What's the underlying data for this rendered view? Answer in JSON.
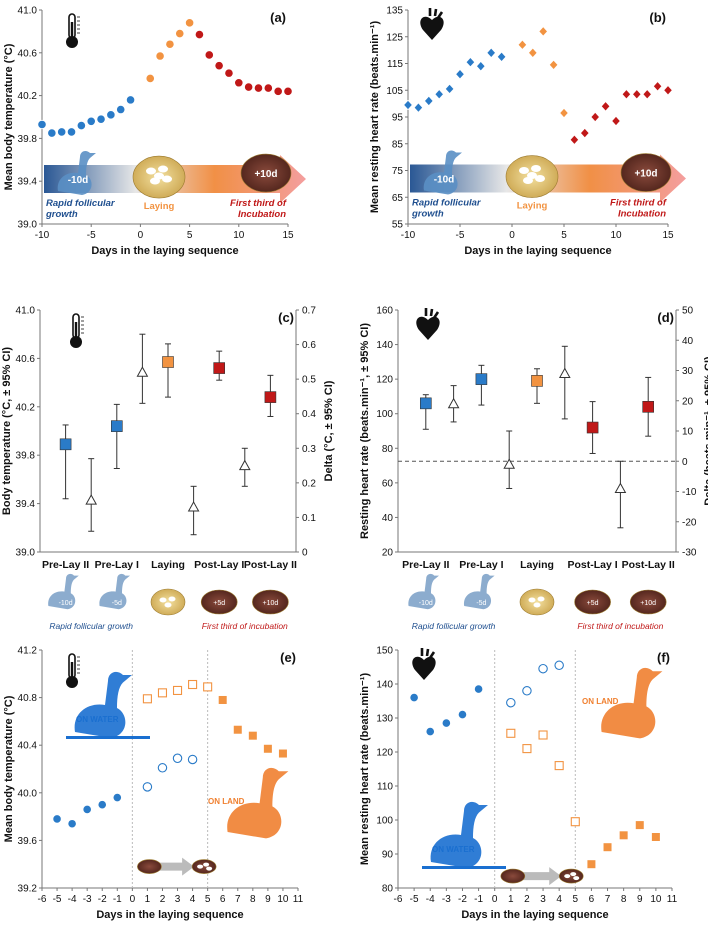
{
  "colors": {
    "pre": "#2a7bc8",
    "lay": "#f29341",
    "post": "#c01818",
    "delta": "#ffffff",
    "axis": "#777777",
    "text": "#111111",
    "arrowBlue": "#1f4f8f",
    "arrowOrange": "#f08a3c",
    "arrowPink": "#f39999",
    "grid": "#bbbbbb"
  },
  "chart_data": [
    {
      "panel": "(a)",
      "type": "scatter",
      "ylabel": "Mean body temperature (°C)",
      "xlabel": "Days in the laying sequence",
      "ylim": [
        39.0,
        41.0
      ],
      "yticks": [
        "39.0",
        "39.4",
        "39.8",
        "40.2",
        "40.6",
        "41.0"
      ],
      "xlim": [
        -10,
        15
      ],
      "xticks": [
        "-10",
        "-5",
        "0",
        "5",
        "10",
        "15"
      ],
      "series": [
        {
          "name": "Rapid follicular growth",
          "color": "pre",
          "marker": "circle",
          "x": [
            -10,
            -9,
            -8,
            -7,
            -6,
            -5,
            -4,
            -3,
            -2,
            -1
          ],
          "y": [
            39.93,
            39.85,
            39.86,
            39.86,
            39.92,
            39.96,
            39.98,
            40.02,
            40.07,
            40.16
          ]
        },
        {
          "name": "Laying",
          "color": "lay",
          "marker": "circle",
          "x": [
            1,
            2,
            3,
            4,
            5
          ],
          "y": [
            40.36,
            40.57,
            40.68,
            40.78,
            40.88
          ]
        },
        {
          "name": "First third of Incubation",
          "color": "post",
          "marker": "circle",
          "x": [
            6,
            7,
            8,
            9,
            10,
            11,
            12,
            13,
            14,
            15
          ],
          "y": [
            40.77,
            40.58,
            40.48,
            40.41,
            40.32,
            40.28,
            40.27,
            40.27,
            40.24,
            40.24
          ]
        }
      ],
      "labels": {
        "pre": "Rapid follicular growth",
        "lay": "Laying",
        "post": "First third of Incubation",
        "preDays": "-10d",
        "postDays": "+10d"
      },
      "icon": "thermometer-icon"
    },
    {
      "panel": "(b)",
      "type": "scatter",
      "ylabel": "Mean resting heart rate (beats.min⁻¹)",
      "xlabel": "Days in the laying sequence",
      "ylim": [
        55,
        135
      ],
      "yticks": [
        "55",
        "65",
        "75",
        "85",
        "95",
        "105",
        "115",
        "125",
        "135"
      ],
      "xlim": [
        -10,
        15
      ],
      "xticks": [
        "-10",
        "-5",
        "0",
        "5",
        "10",
        "15"
      ],
      "series": [
        {
          "name": "Rapid follicular growth",
          "color": "pre",
          "marker": "diamond",
          "x": [
            -10,
            -9,
            -8,
            -7,
            -6,
            -5,
            -4,
            -3,
            -2,
            -1
          ],
          "y": [
            99.5,
            98.5,
            101,
            103.5,
            105.5,
            111,
            115.5,
            114,
            119,
            117.5
          ]
        },
        {
          "name": "Laying",
          "color": "lay",
          "marker": "diamond",
          "x": [
            1,
            2,
            3,
            4,
            5
          ],
          "y": [
            122,
            119,
            127,
            114.5,
            96.5
          ]
        },
        {
          "name": "First third of Incubation",
          "color": "post",
          "marker": "diamond",
          "x": [
            6,
            7,
            8,
            9,
            10,
            11,
            12,
            13,
            14,
            15
          ],
          "y": [
            86.5,
            89,
            95,
            99,
            93.5,
            103.5,
            103.5,
            103.5,
            106.5,
            105
          ]
        }
      ],
      "labels": {
        "pre": "Rapid follicular growth",
        "lay": "Laying",
        "post": "First third of Incubation",
        "preDays": "-10d",
        "postDays": "+10d"
      },
      "icon": "heart-icon"
    },
    {
      "panel": "(c)",
      "type": "errorbar",
      "ylabel": "Body temperature (°C, ± 95% CI)",
      "y2label": "Delta (°C, ± 95% CI)",
      "ylim": [
        39.0,
        41.0
      ],
      "yticks": [
        "39.0",
        "39.4",
        "39.8",
        "40.2",
        "40.6",
        "41.0"
      ],
      "y2lim": [
        0,
        0.7
      ],
      "y2ticks": [
        "0",
        "0.1",
        "0.2",
        "0.3",
        "0.4",
        "0.5",
        "0.6",
        "0.7"
      ],
      "categories": [
        "Pre-Lay II",
        "Pre-Lay I",
        "Laying",
        "Post-Lay I",
        "Post-Lay II"
      ],
      "means": [
        {
          "pos": 1,
          "y": 39.89,
          "lo": 39.44,
          "hi": 40.05,
          "color": "pre"
        },
        {
          "pos": 2,
          "y": 40.04,
          "lo": 39.69,
          "hi": 40.22,
          "color": "pre"
        },
        {
          "pos": 3,
          "y": 40.57,
          "lo": 40.28,
          "hi": 40.72,
          "color": "lay"
        },
        {
          "pos": 4,
          "y": 40.52,
          "lo": 40.42,
          "hi": 40.66,
          "color": "post"
        },
        {
          "pos": 5,
          "y": 40.28,
          "lo": 40.12,
          "hi": 40.46,
          "color": "post"
        }
      ],
      "deltas": [
        {
          "pos": 1.5,
          "y": 0.15,
          "lo": 0.06,
          "hi": 0.27
        },
        {
          "pos": 2.5,
          "y": 0.52,
          "lo": 0.43,
          "hi": 0.63
        },
        {
          "pos": 3.5,
          "y": 0.13,
          "lo": 0.05,
          "hi": 0.19
        },
        {
          "pos": 4.5,
          "y": 0.25,
          "lo": 0.19,
          "hi": 0.3
        }
      ],
      "days": [
        "-10d",
        "-5d",
        "",
        "+5d",
        "+10d"
      ],
      "footer": {
        "pre": "Rapid follicular growth",
        "post": "First third of incubation"
      },
      "icon": "thermometer-icon"
    },
    {
      "panel": "(d)",
      "type": "errorbar",
      "ylabel": "Resting heart rate (beats.min⁻¹, ± 95% CI)",
      "y2label": "Delta (beats.min⁻¹, ± 95% CI)",
      "ylim": [
        20,
        160
      ],
      "yticks": [
        "20",
        "40",
        "60",
        "80",
        "100",
        "120",
        "140",
        "160"
      ],
      "y2lim": [
        -30,
        50
      ],
      "y2ticks": [
        "-30",
        "-20",
        "-10",
        "0",
        "10",
        "20",
        "30",
        "40",
        "50"
      ],
      "categories": [
        "Pre-Lay II",
        "Pre-Lay I",
        "Laying",
        "Post-Lay I",
        "Post-Lay II"
      ],
      "means": [
        {
          "pos": 1,
          "y": 106,
          "lo": 91,
          "hi": 111,
          "color": "pre"
        },
        {
          "pos": 2,
          "y": 120,
          "lo": 105,
          "hi": 128,
          "color": "pre"
        },
        {
          "pos": 3,
          "y": 119,
          "lo": 106,
          "hi": 126,
          "color": "lay"
        },
        {
          "pos": 4,
          "y": 92,
          "lo": 77,
          "hi": 107,
          "color": "post"
        },
        {
          "pos": 5,
          "y": 104,
          "lo": 87,
          "hi": 121,
          "color": "post"
        }
      ],
      "deltas": [
        {
          "pos": 1.5,
          "y": 19,
          "lo": 13,
          "hi": 25
        },
        {
          "pos": 2.5,
          "y": -1,
          "lo": -9,
          "hi": 10
        },
        {
          "pos": 3.5,
          "y": 29,
          "lo": 14,
          "hi": 38
        },
        {
          "pos": 4.5,
          "y": -9,
          "lo": -22,
          "hi": 0
        }
      ],
      "days": [
        "-10d",
        "-5d",
        "",
        "+5d",
        "+10d"
      ],
      "footer": {
        "pre": "Rapid follicular growth",
        "post": "First third of incubation"
      },
      "icon": "heart-icon"
    },
    {
      "panel": "(e)",
      "type": "scatter",
      "ylabel": "Mean body temperature (°C)",
      "xlabel": "Days in the laying sequence",
      "ylim": [
        39.2,
        41.2
      ],
      "yticks": [
        "39.2",
        "39.6",
        "40.0",
        "40.4",
        "40.8",
        "41.2"
      ],
      "xlim": [
        -6,
        11
      ],
      "xticks": [
        "-6",
        "-5",
        "-4",
        "-3",
        "-2",
        "-1",
        "0",
        "1",
        "2",
        "3",
        "4",
        "5",
        "6",
        "7",
        "8",
        "9",
        "10",
        "11"
      ],
      "series": [
        {
          "name": "Water circles",
          "color": "pre",
          "marker": "circle",
          "x": [
            -5,
            -4,
            -3,
            -2,
            -1
          ],
          "y": [
            39.78,
            39.74,
            39.86,
            39.9,
            39.96
          ]
        },
        {
          "name": "Water open circles",
          "color": "pre",
          "marker": "circle-open",
          "x": [
            1,
            2,
            3,
            4
          ],
          "y": [
            40.05,
            40.21,
            40.29,
            40.28
          ]
        },
        {
          "name": "Land open squares",
          "color": "lay",
          "marker": "square-open",
          "x": [
            1,
            2,
            3,
            4,
            5
          ],
          "y": [
            40.79,
            40.84,
            40.86,
            40.91,
            40.89
          ]
        },
        {
          "name": "Land squares",
          "color": "lay",
          "marker": "square",
          "x": [
            6,
            7,
            8,
            9,
            10
          ],
          "y": [
            40.78,
            40.53,
            40.48,
            40.37,
            40.33
          ]
        }
      ],
      "labels": {
        "water": "ON WATER",
        "land": "ON LAND"
      },
      "icon": "thermometer-icon"
    },
    {
      "panel": "(f)",
      "type": "scatter",
      "ylabel": "Mean resting heart rate (beats.min⁻¹)",
      "xlabel": "Days in the laying sequence",
      "ylim": [
        80,
        150
      ],
      "yticks": [
        "80",
        "90",
        "100",
        "110",
        "120",
        "130",
        "140",
        "150"
      ],
      "xlim": [
        -6,
        11
      ],
      "xticks": [
        "-6",
        "-5",
        "-4",
        "-3",
        "-2",
        "-1",
        "0",
        "1",
        "2",
        "3",
        "4",
        "5",
        "6",
        "7",
        "8",
        "9",
        "10",
        "11"
      ],
      "series": [
        {
          "name": "Water circles",
          "color": "pre",
          "marker": "circle",
          "x": [
            -5,
            -4,
            -3,
            -2,
            -1
          ],
          "y": [
            136,
            126,
            128.5,
            131,
            138.5
          ]
        },
        {
          "name": "Water open circles",
          "color": "pre",
          "marker": "circle-open",
          "x": [
            1,
            2,
            3,
            4
          ],
          "y": [
            134.5,
            138,
            144.5,
            145.5
          ]
        },
        {
          "name": "Land open squares",
          "color": "lay",
          "marker": "square-open",
          "x": [
            1,
            2,
            3,
            4,
            5
          ],
          "y": [
            125.5,
            121,
            125,
            116,
            99.5
          ]
        },
        {
          "name": "Land squares",
          "color": "lay",
          "marker": "square",
          "x": [
            6,
            7,
            8,
            9,
            10
          ],
          "y": [
            87,
            92,
            95.5,
            98.5,
            95
          ]
        }
      ],
      "labels": {
        "water": "ON WATER",
        "land": "ON LAND"
      },
      "icon": "heart-icon"
    }
  ]
}
